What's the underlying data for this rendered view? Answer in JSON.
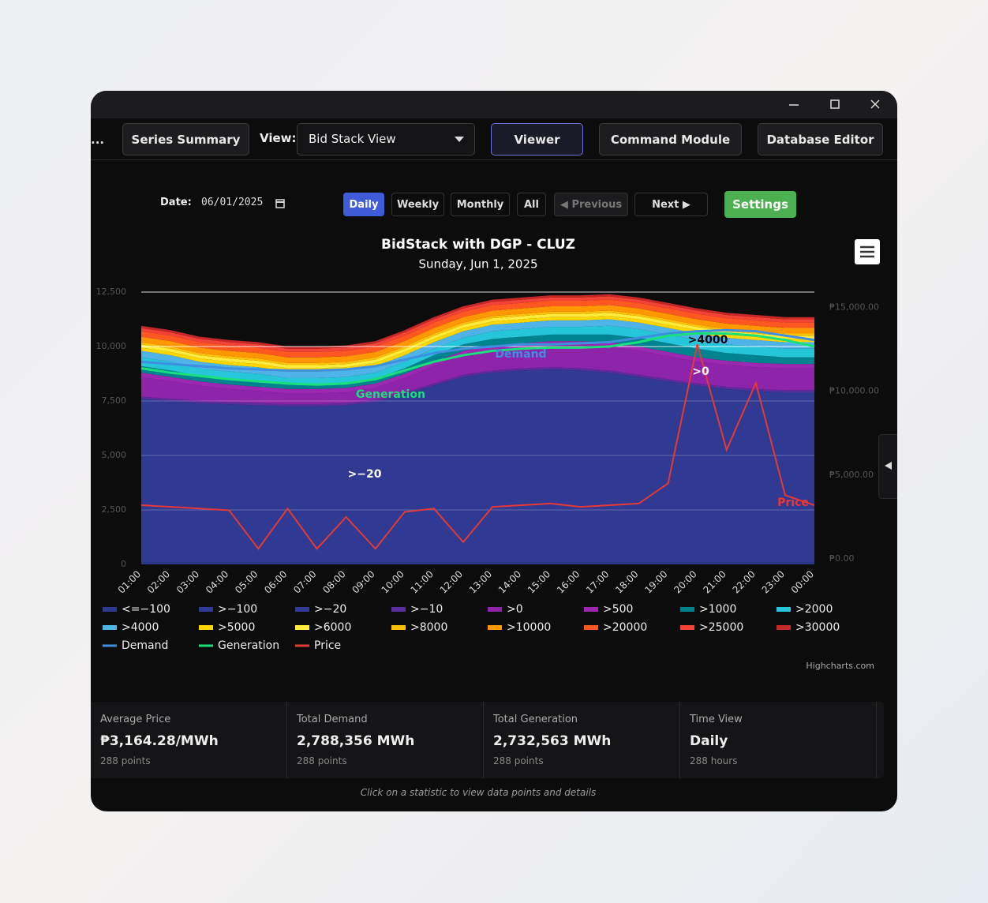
{
  "toolbar": {
    "overflow": "...",
    "series_summary": "Series Summary",
    "view_label": "View:",
    "view_select": "Bid Stack View",
    "viewer": "Viewer",
    "command_module": "Command Module",
    "database_editor": "Database Editor"
  },
  "controls": {
    "date_label": "Date:",
    "date_value": "06/01/2025",
    "daily": "Daily",
    "weekly": "Weekly",
    "monthly": "Monthly",
    "all": "All",
    "previous": "◀ Previous",
    "next": "Next ▶",
    "settings": "Settings"
  },
  "chart_data": {
    "type": "area",
    "title": "BidStack with DGP - CLUZ",
    "subtitle": "Sunday, Jun 1, 2025",
    "credit": "Highcharts.com",
    "categories": [
      "01:00",
      "02:00",
      "03:00",
      "04:00",
      "05:00",
      "06:00",
      "07:00",
      "08:00",
      "09:00",
      "10:00",
      "11:00",
      "12:00",
      "13:00",
      "14:00",
      "15:00",
      "16:00",
      "17:00",
      "18:00",
      "19:00",
      "20:00",
      "21:00",
      "22:00",
      "23:00",
      "00:00"
    ],
    "ylim": [
      0,
      12500
    ],
    "yticks": [
      0,
      {
        "value": 2500,
        "label": "2,500"
      },
      {
        "value": 5000,
        "label": "5,000"
      },
      {
        "value": 7500,
        "label": "7,500"
      },
      {
        "value": 10000,
        "label": "10,000"
      },
      {
        "value": 12500,
        "label": "12,500"
      }
    ],
    "y2lim": [
      -330,
      15920
    ],
    "y2ticks": [
      {
        "value": 0,
        "label": "₱0.00"
      },
      {
        "value": 5000,
        "label": "₱5,000.00"
      },
      {
        "value": 10000,
        "label": "₱10,000.00"
      },
      {
        "value": 15000,
        "label": "₱15,000.00"
      }
    ],
    "grid": true,
    "series": [
      {
        "name": "<=−100",
        "type": "area",
        "color": "#2b3a8c",
        "values": [
          50,
          50,
          50,
          50,
          50,
          50,
          50,
          50,
          50,
          50,
          50,
          50,
          50,
          50,
          50,
          50,
          50,
          50,
          50,
          50,
          50,
          50,
          50,
          50
        ]
      },
      {
        "name": ">−100",
        "type": "area",
        "color": "#2e3a96",
        "values": [
          50,
          50,
          50,
          50,
          50,
          50,
          50,
          50,
          50,
          50,
          50,
          50,
          50,
          50,
          50,
          50,
          50,
          50,
          50,
          50,
          50,
          50,
          50,
          50
        ]
      },
      {
        "name": ">−20",
        "type": "area",
        "color": "#303a92",
        "values": [
          7500,
          7400,
          7300,
          7250,
          7200,
          7150,
          7150,
          7200,
          7350,
          7700,
          8100,
          8500,
          8700,
          8800,
          8850,
          8800,
          8700,
          8500,
          8300,
          8100,
          7950,
          7850,
          7800,
          7800
        ]
      },
      {
        "name": ">−10",
        "type": "area",
        "color": "#5a2c9e",
        "values": [
          100,
          100,
          100,
          100,
          100,
          100,
          100,
          100,
          100,
          100,
          100,
          100,
          100,
          100,
          100,
          100,
          100,
          100,
          100,
          100,
          100,
          100,
          100,
          100
        ]
      },
      {
        "name": ">0",
        "type": "area",
        "color": "#8e24aa",
        "values": [
          900,
          800,
          700,
          600,
          550,
          500,
          500,
          500,
          550,
          650,
          800,
          900,
          950,
          950,
          1000,
          1050,
          1100,
          1100,
          1050,
          1000,
          1000,
          1000,
          1000,
          1000
        ]
      },
      {
        "name": ">500",
        "type": "area",
        "color": "#9c27b0",
        "values": [
          200,
          200,
          200,
          200,
          200,
          200,
          200,
          200,
          200,
          200,
          200,
          200,
          200,
          200,
          200,
          200,
          200,
          200,
          200,
          200,
          200,
          200,
          200,
          200
        ]
      },
      {
        "name": ">1000",
        "type": "area",
        "color": "#00838f",
        "values": [
          300,
          300,
          250,
          250,
          250,
          200,
          200,
          200,
          200,
          250,
          300,
          300,
          300,
          300,
          300,
          300,
          350,
          400,
          400,
          400,
          350,
          350,
          300,
          300
        ]
      },
      {
        "name": ">2000",
        "type": "area",
        "color": "#26c6da",
        "values": [
          400,
          400,
          350,
          350,
          350,
          300,
          300,
          300,
          300,
          300,
          300,
          300,
          350,
          350,
          350,
          350,
          400,
          400,
          400,
          400,
          400,
          400,
          400,
          400
        ]
      },
      {
        "name": ">4000",
        "type": "area",
        "color": "#4fb3e8",
        "values": [
          300,
          300,
          300,
          300,
          300,
          300,
          300,
          300,
          300,
          300,
          300,
          300,
          300,
          300,
          300,
          300,
          300,
          300,
          300,
          300,
          300,
          300,
          300,
          300
        ]
      },
      {
        "name": ">5000",
        "type": "area",
        "color": "#ffd600",
        "values": [
          150,
          150,
          150,
          150,
          150,
          150,
          150,
          150,
          150,
          150,
          150,
          150,
          150,
          150,
          150,
          150,
          150,
          150,
          150,
          150,
          150,
          150,
          150,
          150
        ]
      },
      {
        "name": ">6000",
        "type": "area",
        "color": "#ffeb3b",
        "values": [
          150,
          150,
          150,
          150,
          150,
          150,
          150,
          150,
          150,
          150,
          150,
          150,
          150,
          150,
          150,
          150,
          150,
          150,
          150,
          150,
          150,
          150,
          150,
          150
        ]
      },
      {
        "name": ">8000",
        "type": "area",
        "color": "#ffc107",
        "values": [
          100,
          100,
          100,
          100,
          100,
          100,
          100,
          100,
          100,
          100,
          100,
          100,
          100,
          100,
          100,
          100,
          100,
          100,
          100,
          100,
          100,
          100,
          100,
          100
        ]
      },
      {
        "name": ">10000",
        "type": "area",
        "color": "#ff9800",
        "values": [
          250,
          250,
          250,
          250,
          250,
          250,
          250,
          250,
          250,
          250,
          250,
          250,
          250,
          250,
          250,
          250,
          250,
          250,
          250,
          250,
          250,
          250,
          250,
          250
        ]
      },
      {
        "name": ">20000",
        "type": "area",
        "color": "#ff5722",
        "values": [
          250,
          250,
          250,
          250,
          250,
          250,
          250,
          250,
          250,
          250,
          250,
          250,
          250,
          250,
          250,
          250,
          250,
          250,
          250,
          250,
          250,
          250,
          250,
          250
        ]
      },
      {
        "name": ">25000",
        "type": "area",
        "color": "#f44336",
        "values": [
          150,
          150,
          150,
          150,
          150,
          150,
          150,
          150,
          150,
          150,
          150,
          150,
          150,
          150,
          150,
          150,
          150,
          150,
          150,
          150,
          150,
          150,
          150,
          150
        ]
      },
      {
        "name": ">30000",
        "type": "area",
        "color": "#c62828",
        "values": [
          100,
          100,
          100,
          100,
          100,
          100,
          100,
          100,
          100,
          100,
          100,
          100,
          100,
          100,
          100,
          100,
          100,
          100,
          100,
          100,
          100,
          100,
          100,
          100
        ]
      },
      {
        "name": "Demand",
        "type": "line",
        "color": "#3f8fe0",
        "values": [
          9300,
          9200,
          9100,
          9000,
          8950,
          8900,
          8900,
          8950,
          9100,
          9400,
          9700,
          9900,
          10000,
          10100,
          10100,
          10150,
          10200,
          10400,
          10600,
          10700,
          10750,
          10700,
          10500,
          10300
        ]
      },
      {
        "name": "Generation",
        "type": "line",
        "color": "#19e07a",
        "values": [
          9000,
          8800,
          8650,
          8500,
          8400,
          8300,
          8250,
          8300,
          8500,
          8900,
          9300,
          9600,
          9800,
          9900,
          9950,
          9950,
          10000,
          10200,
          10500,
          10600,
          10600,
          10500,
          10300,
          10000
        ]
      },
      {
        "name": "Price",
        "type": "line",
        "axis": "y2",
        "color": "#e53935",
        "values": [
          3200,
          3100,
          3000,
          2900,
          600,
          3000,
          600,
          2500,
          600,
          2800,
          3000,
          1000,
          3100,
          3200,
          3300,
          3100,
          3200,
          3300,
          4500,
          12800,
          6500,
          10500,
          3800,
          3200
        ]
      }
    ],
    "annotations": [
      ">4000",
      ">0",
      ">−20",
      "Demand",
      "Generation",
      "Price"
    ]
  },
  "stats": [
    {
      "label": "Average Price",
      "value": "₱3,164.28/MWh",
      "sub": "288 points"
    },
    {
      "label": "Total Demand",
      "value": "2,788,356 MWh",
      "sub": "288 points"
    },
    {
      "label": "Total Generation",
      "value": "2,732,563 MWh",
      "sub": "288 points"
    },
    {
      "label": "Time View",
      "value": "Daily",
      "sub": "288 hours"
    }
  ],
  "footer_hint": "Click on a statistic to view data points and details"
}
